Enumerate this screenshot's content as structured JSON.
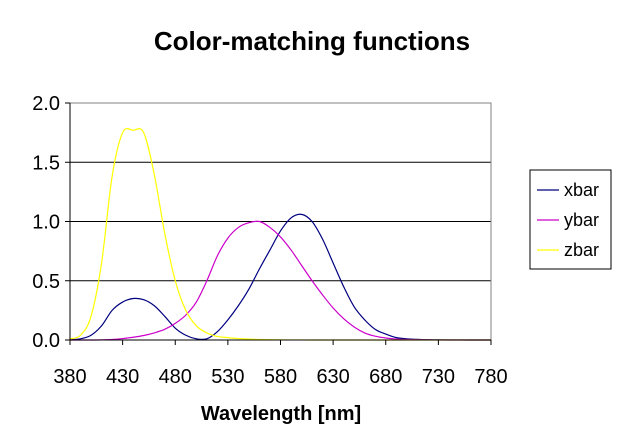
{
  "chart_data": {
    "type": "line",
    "title": "Color-matching functions",
    "xlabel": "Wavelength [nm]",
    "ylabel": "",
    "xlim": [
      380,
      780
    ],
    "ylim": [
      0,
      2.0
    ],
    "xticks": [
      "380",
      "430",
      "480",
      "530",
      "580",
      "630",
      "680",
      "730",
      "780"
    ],
    "yticks": [
      "0.0",
      "0.5",
      "1.0",
      "1.5",
      "2.0"
    ],
    "grid": "horizontal",
    "legend": "right",
    "x": [
      380,
      390,
      400,
      410,
      420,
      430,
      440,
      450,
      460,
      470,
      480,
      490,
      500,
      510,
      520,
      530,
      540,
      550,
      560,
      570,
      580,
      590,
      600,
      610,
      620,
      630,
      640,
      650,
      660,
      670,
      680,
      690,
      700,
      710,
      720,
      730,
      740,
      750,
      760,
      770,
      780
    ],
    "series": [
      {
        "name": "xbar",
        "color": "#000080",
        "values": [
          0.003,
          0.01,
          0.04,
          0.12,
          0.25,
          0.32,
          0.35,
          0.34,
          0.29,
          0.2,
          0.1,
          0.04,
          0.01,
          0.01,
          0.07,
          0.17,
          0.29,
          0.43,
          0.6,
          0.76,
          0.92,
          1.03,
          1.06,
          1.0,
          0.85,
          0.65,
          0.45,
          0.28,
          0.17,
          0.09,
          0.05,
          0.02,
          0.01,
          0.005,
          0.002,
          0.001,
          0.0005,
          0.0003,
          0.0001,
          0.0001,
          0.0
        ]
      },
      {
        "name": "ybar",
        "color": "#cc00cc",
        "values": [
          0.0,
          0.0,
          0.0,
          0.001,
          0.004,
          0.012,
          0.023,
          0.038,
          0.06,
          0.09,
          0.14,
          0.21,
          0.32,
          0.5,
          0.71,
          0.86,
          0.95,
          0.99,
          1.0,
          0.95,
          0.87,
          0.76,
          0.63,
          0.5,
          0.38,
          0.27,
          0.18,
          0.11,
          0.06,
          0.032,
          0.017,
          0.008,
          0.004,
          0.002,
          0.001,
          0.0005,
          0.0002,
          0.0001,
          0.0,
          0.0,
          0.0
        ]
      },
      {
        "name": "zbar",
        "color": "#ffff00",
        "values": [
          0.01,
          0.04,
          0.2,
          0.65,
          1.38,
          1.75,
          1.77,
          1.75,
          1.4,
          0.9,
          0.5,
          0.25,
          0.12,
          0.06,
          0.03,
          0.02,
          0.012,
          0.008,
          0.004,
          0.002,
          0.001,
          0.0006,
          0.0003,
          0.0002,
          0.0001,
          0.0,
          0.0,
          0.0,
          0.0,
          0.0,
          0.0,
          0.0,
          0.0,
          0.0,
          0.0,
          0.0,
          0.0,
          0.0,
          0.0,
          0.0,
          0.0
        ]
      }
    ]
  }
}
